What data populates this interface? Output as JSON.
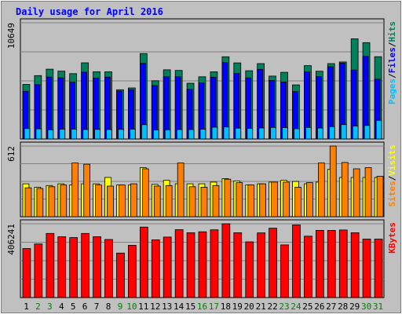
{
  "chart_data": [
    {
      "type": "bar",
      "title": "Daily usage for April 2016",
      "panel": "top",
      "categories": [
        "1",
        "2",
        "3",
        "4",
        "5",
        "6",
        "7",
        "8",
        "9",
        "10",
        "11",
        "12",
        "13",
        "14",
        "15",
        "16",
        "17",
        "18",
        "19",
        "20",
        "21",
        "22",
        "23",
        "24",
        "25",
        "26",
        "27",
        "28",
        "29",
        "30",
        "31"
      ],
      "ymax": 10649,
      "ymax_label": "10649",
      "legend": [
        "Pages",
        "/",
        "Files",
        "/",
        "Hits"
      ],
      "legend_placement": "right",
      "series": [
        {
          "name": "Hits",
          "color": "#00805b",
          "values": [
            5000,
            5810,
            6400,
            6220,
            5990,
            6980,
            6160,
            6160,
            4510,
            4680,
            7830,
            5340,
            6340,
            6280,
            5110,
            5700,
            6160,
            7530,
            6970,
            6250,
            6910,
            5760,
            6110,
            4960,
            6720,
            6210,
            6910,
            7060,
            9180,
            8830,
            7540
          ]
        },
        {
          "name": "Files",
          "color": "#0000ff",
          "values": [
            4370,
            4980,
            5680,
            5600,
            5200,
            6120,
            5580,
            5670,
            4380,
            4520,
            6920,
            4890,
            5700,
            5700,
            4550,
            5140,
            5660,
            7000,
            6010,
            5600,
            6380,
            5370,
            5220,
            4340,
            6160,
            5710,
            6630,
            6940,
            6320,
            7570,
            5480
          ]
        },
        {
          "name": "Pages",
          "color": "#00c0ff",
          "values": [
            960,
            930,
            850,
            890,
            910,
            870,
            880,
            860,
            880,
            900,
            1310,
            830,
            840,
            860,
            860,
            890,
            1080,
            1100,
            990,
            970,
            1010,
            1060,
            1040,
            940,
            1060,
            1000,
            1130,
            1320,
            1180,
            1240,
            1710
          ]
        }
      ]
    },
    {
      "type": "bar",
      "panel": "middle",
      "categories": [
        "1",
        "2",
        "3",
        "4",
        "5",
        "6",
        "7",
        "8",
        "9",
        "10",
        "11",
        "12",
        "13",
        "14",
        "15",
        "16",
        "17",
        "18",
        "19",
        "20",
        "21",
        "22",
        "23",
        "24",
        "25",
        "26",
        "27",
        "28",
        "29",
        "30",
        "31"
      ],
      "ymax": 612,
      "ymax_label": "612",
      "legend": [
        "Sites",
        "/",
        "Visits"
      ],
      "legend_placement": "right",
      "series": [
        {
          "name": "Visits",
          "color": "#ffff00",
          "values": [
            285,
            255,
            270,
            285,
            275,
            285,
            285,
            340,
            275,
            275,
            425,
            280,
            315,
            285,
            285,
            285,
            300,
            330,
            310,
            275,
            285,
            300,
            315,
            305,
            285,
            300,
            410,
            340,
            340,
            340,
            340
          ]
        },
        {
          "name": "Sites",
          "color": "#ff8000",
          "values": [
            250,
            245,
            260,
            275,
            465,
            455,
            275,
            265,
            275,
            285,
            415,
            265,
            270,
            465,
            260,
            255,
            270,
            325,
            295,
            275,
            285,
            300,
            300,
            255,
            295,
            465,
            612,
            470,
            415,
            425,
            350
          ]
        }
      ]
    },
    {
      "type": "bar",
      "panel": "bottom",
      "categories": [
        "1",
        "2",
        "3",
        "4",
        "5",
        "6",
        "7",
        "8",
        "9",
        "10",
        "11",
        "12",
        "13",
        "14",
        "15",
        "16",
        "17",
        "18",
        "19",
        "20",
        "21",
        "22",
        "23",
        "24",
        "25",
        "26",
        "27",
        "28",
        "29",
        "30",
        "31"
      ],
      "ymax": 406241,
      "ymax_label": "406241",
      "legend": [
        "KBytes"
      ],
      "legend_placement": "right",
      "series": [
        {
          "name": "KBytes",
          "color": "#ff0000",
          "values": [
            270000,
            295000,
            353000,
            335000,
            330000,
            353000,
            335000,
            320000,
            245000,
            288000,
            388000,
            318000,
            333000,
            374000,
            357000,
            362000,
            373000,
            406241,
            357000,
            307000,
            356000,
            382000,
            290000,
            400000,
            338000,
            370000,
            370000,
            372000,
            357000,
            322000,
            322000
          ]
        }
      ]
    }
  ]
}
